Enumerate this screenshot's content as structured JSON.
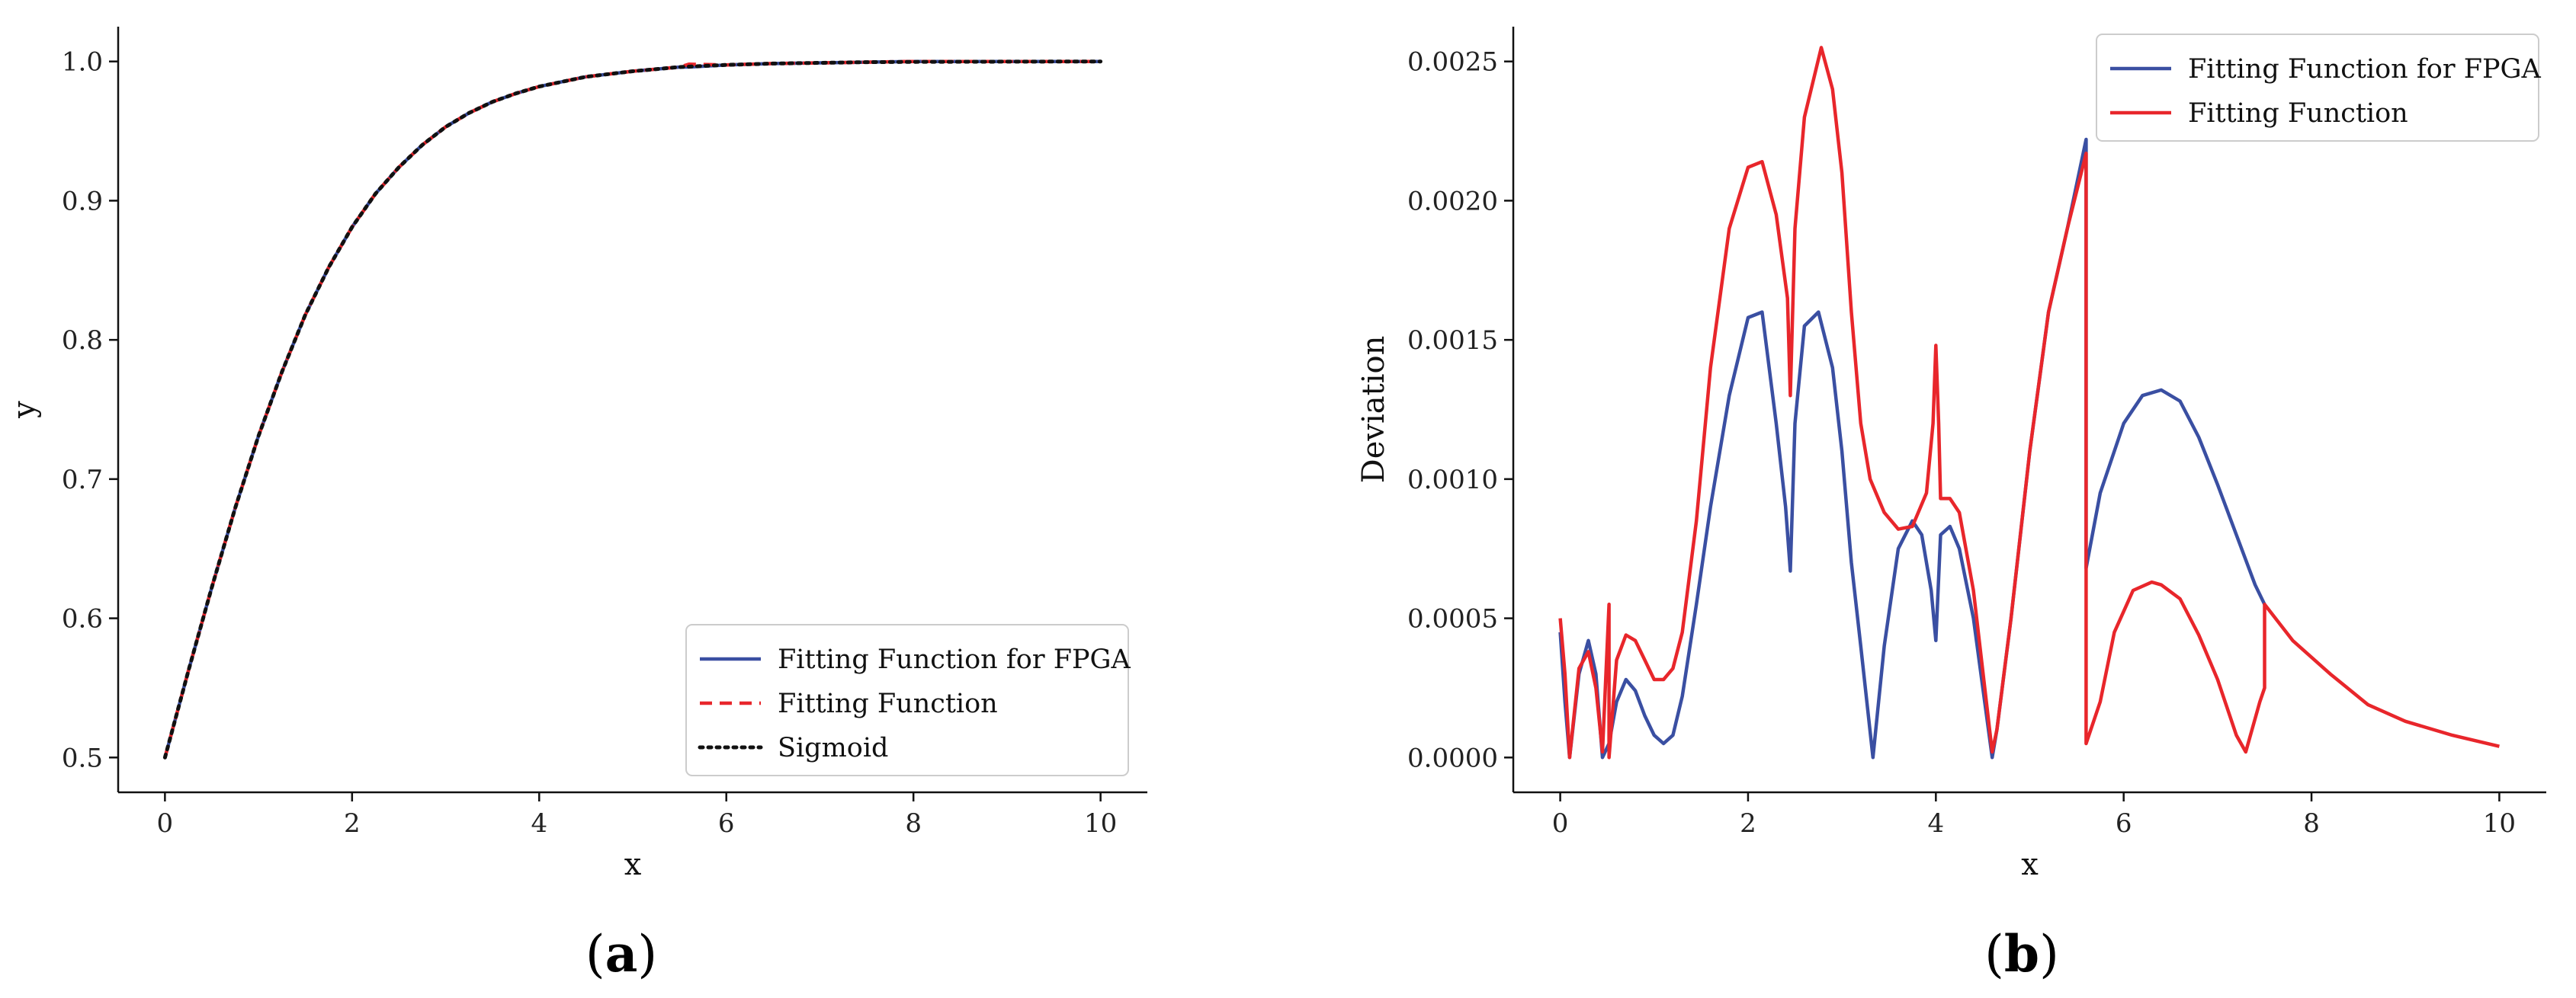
{
  "chart_data": [
    {
      "type": "line",
      "panel_label": "a",
      "xlabel": "x",
      "ylabel": "y",
      "xlim": [
        -0.5,
        10.5
      ],
      "ylim": [
        0.475,
        1.025
      ],
      "xticks": [
        "0",
        "2",
        "4",
        "6",
        "8",
        "10"
      ],
      "yticks": [
        "0.5",
        "0.6",
        "0.7",
        "0.8",
        "0.9",
        "1.0"
      ],
      "legend_position": "lower-right",
      "series": [
        {
          "name": "Fitting Function for FPGA",
          "color": "#3a4fa2",
          "style": "solid",
          "x": [
            0,
            0.25,
            0.5,
            0.75,
            1,
            1.25,
            1.5,
            1.75,
            2,
            2.25,
            2.5,
            2.75,
            3,
            3.25,
            3.5,
            3.75,
            4,
            4.5,
            5,
            5.5,
            5.6,
            6,
            6.5,
            7,
            7.5,
            8,
            9,
            10
          ],
          "y": [
            0.5,
            0.562,
            0.622,
            0.679,
            0.731,
            0.777,
            0.818,
            0.852,
            0.881,
            0.905,
            0.924,
            0.94,
            0.953,
            0.963,
            0.971,
            0.977,
            0.982,
            0.989,
            0.993,
            0.996,
            0.996,
            0.9975,
            0.9985,
            0.999,
            0.9995,
            1.0,
            1.0,
            1.0
          ]
        },
        {
          "name": "Fitting Function",
          "color": "#e8262b",
          "style": "dashed",
          "x": [
            0,
            0.25,
            0.5,
            0.75,
            1,
            1.25,
            1.5,
            1.75,
            2,
            2.25,
            2.5,
            2.75,
            3,
            3.25,
            3.5,
            3.75,
            4,
            4.5,
            5,
            5.5,
            5.6,
            6,
            6.5,
            7,
            7.5,
            8,
            9,
            10
          ],
          "y": [
            0.5,
            0.562,
            0.622,
            0.679,
            0.731,
            0.777,
            0.818,
            0.852,
            0.881,
            0.905,
            0.924,
            0.94,
            0.953,
            0.963,
            0.971,
            0.977,
            0.982,
            0.989,
            0.993,
            0.996,
            0.998,
            0.9975,
            0.9985,
            0.999,
            0.9995,
            1.0,
            1.0,
            1.0
          ]
        },
        {
          "name": "Sigmoid",
          "color": "#111111",
          "style": "dotted",
          "x": [
            0,
            0.25,
            0.5,
            0.75,
            1,
            1.25,
            1.5,
            1.75,
            2,
            2.25,
            2.5,
            2.75,
            3,
            3.25,
            3.5,
            3.75,
            4,
            4.5,
            5,
            5.5,
            6,
            6.5,
            7,
            7.5,
            8,
            9,
            10
          ],
          "y": [
            0.5,
            0.562,
            0.622,
            0.679,
            0.731,
            0.777,
            0.818,
            0.852,
            0.881,
            0.905,
            0.924,
            0.94,
            0.953,
            0.963,
            0.971,
            0.977,
            0.982,
            0.989,
            0.993,
            0.996,
            0.9975,
            0.9985,
            0.999,
            0.9995,
            0.9997,
            0.9999,
            1.0
          ]
        }
      ]
    },
    {
      "type": "line",
      "panel_label": "b",
      "xlabel": "x",
      "ylabel": "Deviation",
      "xlim": [
        -0.5,
        10.5
      ],
      "ylim": [
        -0.000125,
        0.002625
      ],
      "xticks": [
        "0",
        "2",
        "4",
        "6",
        "8",
        "10"
      ],
      "yticks": [
        "0.0000",
        "0.0005",
        "0.0010",
        "0.0015",
        "0.0020",
        "0.0025"
      ],
      "legend_position": "upper-right",
      "series": [
        {
          "name": "Fitting Function for FPGA",
          "color": "#3a4fa2",
          "style": "solid",
          "x": [
            0,
            0.05,
            0.1,
            0.2,
            0.3,
            0.38,
            0.45,
            0.52,
            0.6,
            0.7,
            0.8,
            0.9,
            1.0,
            1.1,
            1.2,
            1.3,
            1.45,
            1.6,
            1.8,
            2.0,
            2.15,
            2.3,
            2.4,
            2.45,
            2.5,
            2.6,
            2.75,
            2.9,
            3.0,
            3.1,
            3.2,
            3.33,
            3.45,
            3.6,
            3.75,
            3.85,
            3.95,
            4.0,
            4.05,
            4.15,
            4.25,
            4.4,
            4.6,
            4.65,
            4.8,
            5.0,
            5.2,
            5.4,
            5.6,
            5.6,
            5.75,
            6.0,
            6.2,
            6.4,
            6.6,
            6.8,
            7.0,
            7.2,
            7.4,
            7.5
          ],
          "y": [
            0.00045,
            0.0002,
            0.0,
            0.0003,
            0.00042,
            0.0003,
            0.0,
            5e-05,
            0.0002,
            0.00028,
            0.00024,
            0.00015,
            8e-05,
            5e-05,
            8e-05,
            0.00022,
            0.00055,
            0.0009,
            0.0013,
            0.00158,
            0.0016,
            0.0012,
            0.0009,
            0.00067,
            0.0012,
            0.00155,
            0.0016,
            0.0014,
            0.0011,
            0.0007,
            0.0004,
            0.0,
            0.0004,
            0.00075,
            0.00085,
            0.0008,
            0.0006,
            0.00042,
            0.0008,
            0.00083,
            0.00075,
            0.0005,
            0.0,
            0.0001,
            0.0005,
            0.0011,
            0.0016,
            0.0019,
            0.00222,
            0.00068,
            0.00095,
            0.0012,
            0.0013,
            0.00132,
            0.00128,
            0.00115,
            0.00098,
            0.0008,
            0.00062,
            0.00055
          ]
        },
        {
          "name": "Fitting Function",
          "color": "#e8262b",
          "style": "solid",
          "x": [
            0,
            0.05,
            0.1,
            0.2,
            0.3,
            0.38,
            0.45,
            0.52,
            0.52,
            0.6,
            0.7,
            0.8,
            0.9,
            1.0,
            1.1,
            1.2,
            1.3,
            1.45,
            1.6,
            1.8,
            2.0,
            2.15,
            2.3,
            2.42,
            2.45,
            2.5,
            2.6,
            2.78,
            2.9,
            3.0,
            3.1,
            3.2,
            3.3,
            3.45,
            3.6,
            3.75,
            3.9,
            3.97,
            4.0,
            4.03,
            4.05,
            4.15,
            4.25,
            4.4,
            4.6,
            4.65,
            4.8,
            5.0,
            5.2,
            5.4,
            5.6,
            5.6,
            5.75,
            5.9,
            6.1,
            6.3,
            6.4,
            6.6,
            6.8,
            7.0,
            7.2,
            7.3,
            7.45,
            7.5,
            7.5,
            7.8,
            8.2,
            8.6,
            9.0,
            9.5,
            10.0
          ],
          "y": [
            0.0005,
            0.0003,
            0.0,
            0.00032,
            0.00038,
            0.00025,
            2e-05,
            0.00055,
            0.0,
            0.00035,
            0.00044,
            0.00042,
            0.00035,
            0.00028,
            0.00028,
            0.00032,
            0.00045,
            0.00085,
            0.0014,
            0.0019,
            0.00212,
            0.00214,
            0.00195,
            0.00165,
            0.0013,
            0.0019,
            0.0023,
            0.00255,
            0.0024,
            0.0021,
            0.0016,
            0.0012,
            0.001,
            0.00088,
            0.00082,
            0.00083,
            0.00095,
            0.0012,
            0.00148,
            0.0012,
            0.00093,
            0.00093,
            0.00088,
            0.0006,
            2e-05,
            0.0001,
            0.0005,
            0.0011,
            0.0016,
            0.0019,
            0.00217,
            5e-05,
            0.0002,
            0.00045,
            0.0006,
            0.00063,
            0.00062,
            0.00057,
            0.00044,
            0.00028,
            8e-05,
            2e-05,
            0.0002,
            0.00025,
            0.00055,
            0.00042,
            0.0003,
            0.00019,
            0.00013,
            8e-05,
            4e-05
          ]
        }
      ]
    }
  ]
}
